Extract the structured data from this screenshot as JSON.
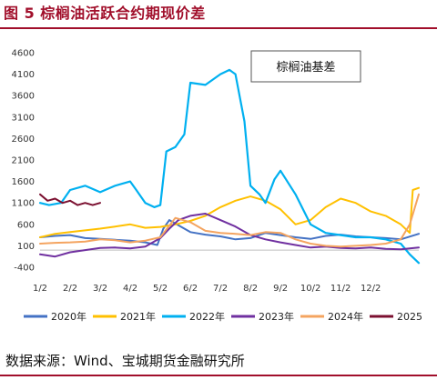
{
  "figure": {
    "title": "图 5 棕榈油活跃合约期现价差",
    "source": "数据来源：Wind、宝城期货金融研究所"
  },
  "chart_data": {
    "type": "line",
    "title": "",
    "xlabel": "",
    "ylabel": "",
    "ylim": [
      -400,
      4600
    ],
    "yticks": [
      -400,
      100,
      600,
      1100,
      1600,
      2100,
      2600,
      3100,
      3600,
      4100,
      4600
    ],
    "xticks": [
      "1/2",
      "2/2",
      "3/2",
      "4/2",
      "5/2",
      "6/2",
      "7/2",
      "8/2",
      "9/2",
      "10/2",
      "11/2",
      "12/2"
    ],
    "grid": false,
    "legend_position": "bottom",
    "annotation": "棕榈油基差",
    "colors": {
      "2020年": "#4472c4",
      "2021年": "#ffc000",
      "2022年": "#00b0f0",
      "2023年": "#7030a0",
      "2024年": "#f4a460",
      "2025": "#7b1030"
    },
    "series": [
      {
        "name": "2020年",
        "x": [
          0,
          0.5,
          1,
          1.5,
          2,
          2.5,
          3,
          3.5,
          3.9,
          4.1,
          4.3,
          4.6,
          5,
          5.5,
          6,
          6.5,
          7,
          7.5,
          8,
          8.5,
          9,
          9.5,
          10,
          10.5,
          11,
          11.5,
          12,
          12.6
        ],
        "values": [
          300,
          330,
          350,
          280,
          260,
          240,
          220,
          180,
          120,
          500,
          700,
          580,
          420,
          360,
          320,
          250,
          280,
          400,
          350,
          300,
          260,
          330,
          360,
          320,
          300,
          280,
          250,
          380
        ]
      },
      {
        "name": "2021年",
        "x": [
          0,
          0.5,
          1,
          1.5,
          2,
          2.5,
          3,
          3.5,
          4,
          4.5,
          5,
          5.5,
          6,
          6.5,
          7,
          7.5,
          8,
          8.5,
          9,
          9.5,
          10,
          10.5,
          11,
          11.5,
          12,
          12.3,
          12.4,
          12.6
        ],
        "values": [
          300,
          380,
          420,
          460,
          500,
          550,
          600,
          520,
          540,
          600,
          680,
          800,
          1000,
          1150,
          1250,
          1150,
          950,
          600,
          700,
          1000,
          1200,
          1100,
          900,
          800,
          600,
          400,
          1400,
          1450
        ]
      },
      {
        "name": "2022年",
        "x": [
          0,
          0.3,
          0.7,
          1,
          1.5,
          2,
          2.5,
          3,
          3.2,
          3.5,
          3.8,
          4,
          4.2,
          4.5,
          4.8,
          5,
          5.5,
          6,
          6.3,
          6.5,
          6.8,
          7,
          7.3,
          7.5,
          7.8,
          8,
          8.5,
          9,
          9.5,
          10,
          10.5,
          11,
          11.5,
          12,
          12.3,
          12.6
        ],
        "values": [
          1100,
          1050,
          1100,
          1400,
          1500,
          1350,
          1500,
          1600,
          1400,
          1100,
          1000,
          1050,
          2300,
          2400,
          2700,
          3900,
          3850,
          4100,
          4200,
          4100,
          3000,
          1500,
          1300,
          1100,
          1650,
          1850,
          1300,
          600,
          400,
          350,
          300,
          300,
          250,
          150,
          -100,
          -300
        ]
      },
      {
        "name": "2023年",
        "x": [
          0,
          0.5,
          1,
          1.5,
          2,
          2.5,
          3,
          3.5,
          4,
          4.3,
          4.6,
          5,
          5.5,
          6,
          6.5,
          7,
          7.5,
          8,
          8.5,
          9,
          9.5,
          10,
          10.5,
          11,
          11.5,
          12,
          12.3,
          12.6
        ],
        "values": [
          -100,
          -150,
          -50,
          0,
          50,
          60,
          40,
          80,
          280,
          500,
          700,
          800,
          850,
          700,
          550,
          350,
          250,
          180,
          120,
          60,
          80,
          50,
          40,
          60,
          30,
          20,
          40,
          60
        ]
      },
      {
        "name": "2024年",
        "x": [
          0,
          0.5,
          1,
          1.5,
          2,
          2.5,
          3,
          3.5,
          4,
          4.5,
          5,
          5.5,
          6,
          6.5,
          7,
          7.5,
          8,
          8.5,
          9,
          9.5,
          10,
          10.5,
          11,
          11.5,
          12,
          12.3,
          12.6
        ],
        "values": [
          150,
          170,
          180,
          200,
          250,
          230,
          180,
          220,
          300,
          750,
          650,
          450,
          400,
          380,
          350,
          420,
          400,
          250,
          150,
          100,
          80,
          100,
          120,
          150,
          250,
          600,
          1300
        ]
      },
      {
        "name": "2025",
        "x": [
          0,
          0.25,
          0.5,
          0.75,
          1,
          1.25,
          1.5,
          1.75,
          2
        ],
        "values": [
          1300,
          1150,
          1200,
          1100,
          1150,
          1050,
          1100,
          1050,
          1100
        ]
      }
    ]
  }
}
